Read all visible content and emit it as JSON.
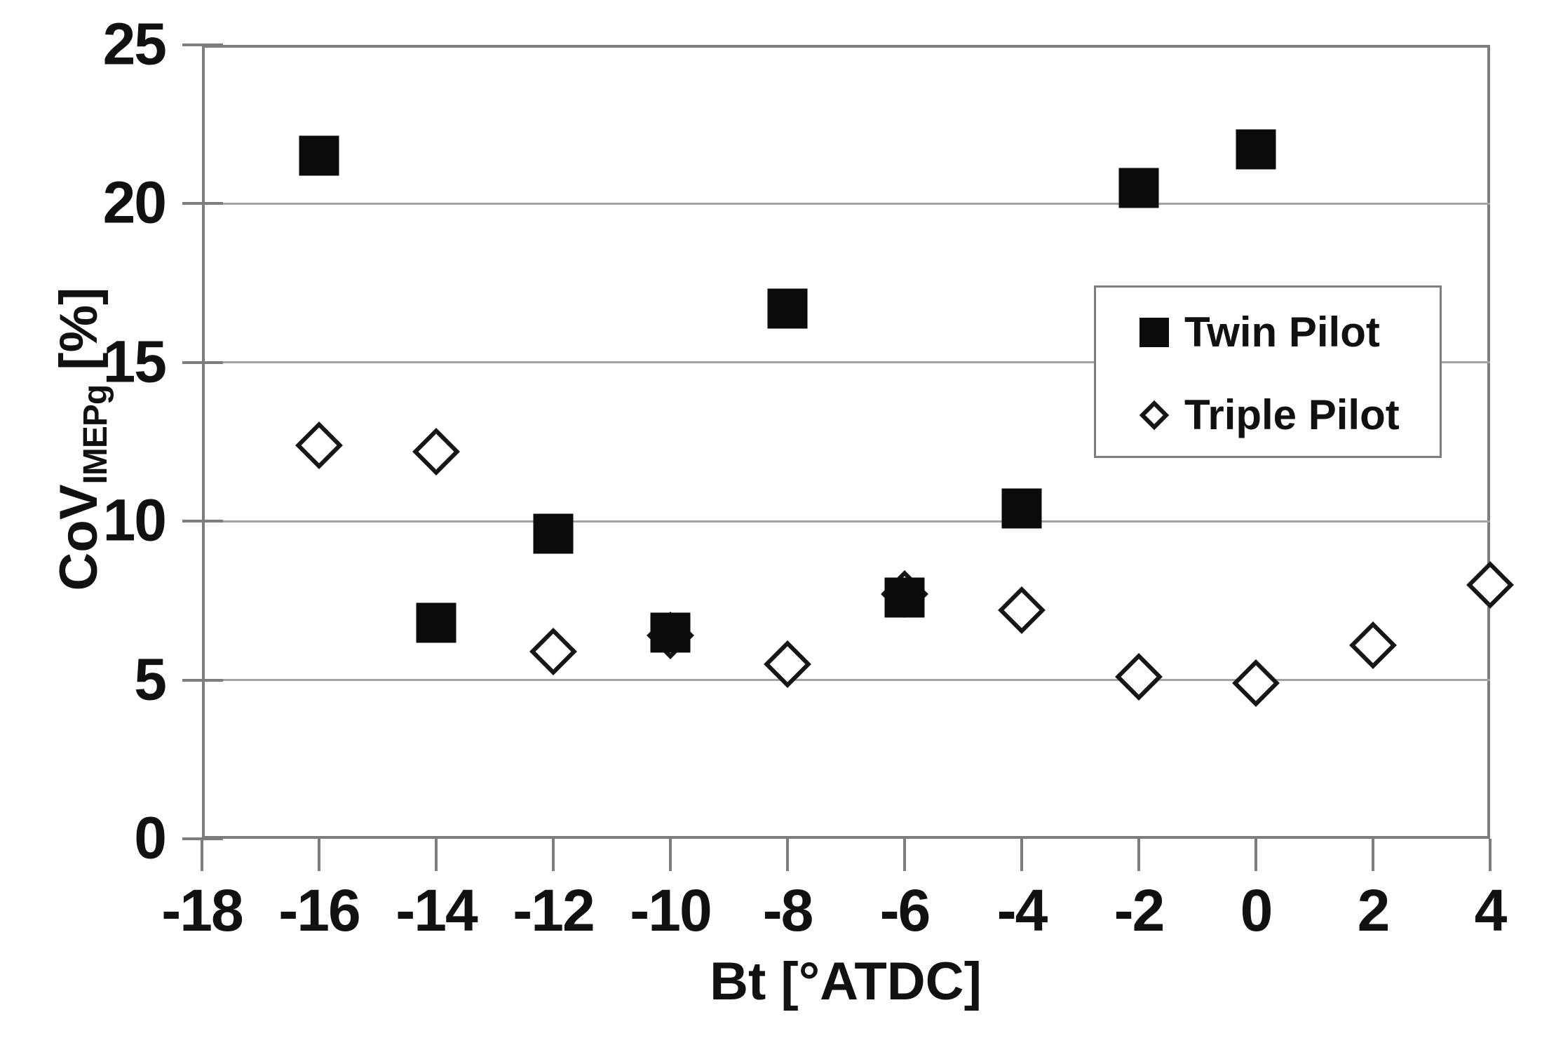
{
  "colors": {
    "background": "#ffffff",
    "marker_fill": "#0b0b0b",
    "diamond_fill": "#ffffff",
    "diamond_stroke": "#161616",
    "gridline": "#a3a3a3",
    "axis": "#7d7d7d",
    "text": "#111111",
    "legend_border": "#7d7d7d"
  },
  "chart_data": {
    "type": "scatter",
    "title": "",
    "xlabel": "Bt [°ATDC]",
    "ylabel": "CoV_IMEPg [%]",
    "ylabel_parts": {
      "main": "CoV",
      "sub": "IMEPg",
      "unit": " [%]"
    },
    "xlim": [
      -18,
      4
    ],
    "ylim": [
      0,
      25
    ],
    "x_ticks": [
      -18,
      -16,
      -14,
      -12,
      -10,
      -8,
      -6,
      -4,
      -2,
      0,
      2,
      4
    ],
    "y_ticks": [
      0,
      5,
      10,
      15,
      20,
      25
    ],
    "grid": "horizontal-only",
    "legend_position": "upper-right",
    "series": [
      {
        "name": "Twin Pilot",
        "marker": "filled-square",
        "points": [
          [
            -16,
            21.5
          ],
          [
            -14,
            6.8
          ],
          [
            -12,
            9.6
          ],
          [
            -10,
            6.5
          ],
          [
            -8,
            16.7
          ],
          [
            -6,
            7.6
          ],
          [
            -4,
            10.4
          ],
          [
            -2,
            20.5
          ],
          [
            0,
            21.7
          ]
        ]
      },
      {
        "name": "Triple Pilot",
        "marker": "open-diamond",
        "points": [
          [
            -16,
            12.4
          ],
          [
            -14,
            12.2
          ],
          [
            -12,
            5.9
          ],
          [
            -10,
            6.4
          ],
          [
            -8,
            5.5
          ],
          [
            -6,
            7.7
          ],
          [
            -4,
            7.2
          ],
          [
            -2,
            5.1
          ],
          [
            0,
            4.9
          ],
          [
            2,
            6.1
          ],
          [
            4,
            8.0
          ]
        ]
      }
    ]
  },
  "legend": {
    "entries": [
      {
        "label": "Twin Pilot",
        "marker": "filled-square"
      },
      {
        "label": "Triple Pilot",
        "marker": "open-diamond"
      }
    ]
  }
}
